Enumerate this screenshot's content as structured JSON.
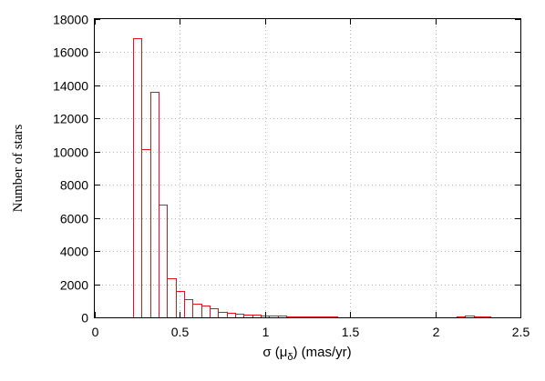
{
  "chart_data": {
    "type": "bar",
    "title": "",
    "xlabel": {
      "pre": "σ (μ",
      "sub": "δ",
      "post": ") (mas/yr)"
    },
    "ylabel": "Number of stars",
    "xlim": [
      0,
      2.5
    ],
    "ylim": [
      0,
      18000
    ],
    "grid": true,
    "x_ticks": [
      "0",
      "0.5",
      "1",
      "1.5",
      "2",
      "2.5"
    ],
    "y_ticks": [
      "0",
      "2000",
      "4000",
      "6000",
      "8000",
      "10000",
      "12000",
      "14000",
      "16000",
      "18000"
    ],
    "bin_width": 0.05,
    "bin_start": 0.225,
    "values": [
      16850,
      10150,
      13600,
      6800,
      2350,
      1600,
      1100,
      850,
      700,
      550,
      350,
      250,
      230,
      190,
      160,
      130,
      110,
      90,
      80,
      60,
      50,
      40,
      35,
      30,
      25,
      20,
      18,
      15,
      12,
      10,
      10,
      8,
      8,
      7,
      6,
      6,
      5,
      5,
      80,
      110,
      60,
      30,
      10
    ]
  }
}
